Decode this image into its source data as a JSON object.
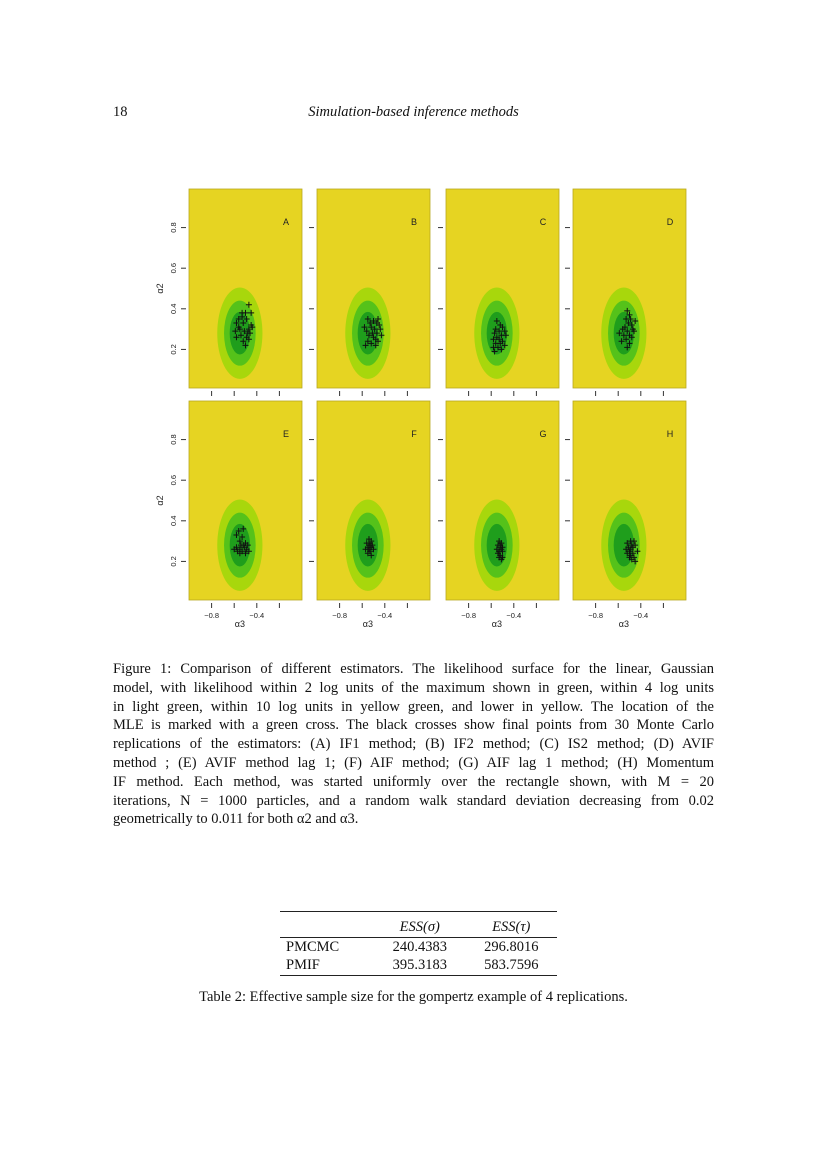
{
  "header": {
    "page_number": "18",
    "running_title": "Simulation-based inference methods"
  },
  "chart_data": {
    "type": "scatter",
    "xlabel": "α3",
    "ylabel": "α2",
    "xlim": [
      -1.0,
      0.0
    ],
    "ylim": [
      0.01,
      0.99
    ],
    "xticks": [
      -0.8,
      -0.6,
      -0.4,
      -0.2
    ],
    "xtick_labels": [
      "−0.8",
      "",
      "−0.4",
      ""
    ],
    "yticks": [
      0.2,
      0.4,
      0.6,
      0.8
    ],
    "ytick_labels": [
      "0.2",
      "0.4",
      "0.6",
      "0.8"
    ],
    "contours": {
      "center": [
        -0.55,
        0.28
      ],
      "levels": [
        {
          "color": "#a8d70c",
          "rx": 0.2,
          "ry": 0.225
        },
        {
          "color": "#55c21a",
          "rx": 0.14,
          "ry": 0.16
        },
        {
          "color": "#1f9e1c",
          "rx": 0.09,
          "ry": 0.105
        }
      ],
      "background_color": "#e6d422"
    },
    "panels": [
      {
        "label": "A",
        "points": [
          [
            -0.47,
            0.42
          ],
          [
            -0.5,
            0.38
          ],
          [
            -0.45,
            0.38
          ],
          [
            -0.53,
            0.38
          ],
          [
            -0.56,
            0.35
          ],
          [
            -0.49,
            0.35
          ],
          [
            -0.58,
            0.33
          ],
          [
            -0.52,
            0.33
          ],
          [
            -0.45,
            0.32
          ],
          [
            -0.47,
            0.3
          ],
          [
            -0.56,
            0.31
          ],
          [
            -0.59,
            0.29
          ],
          [
            -0.51,
            0.29
          ],
          [
            -0.46,
            0.28
          ],
          [
            -0.54,
            0.27
          ],
          [
            -0.49,
            0.26
          ],
          [
            -0.58,
            0.26
          ],
          [
            -0.47,
            0.25
          ],
          [
            -0.52,
            0.24
          ],
          [
            -0.5,
            0.22
          ],
          [
            -0.44,
            0.31
          ],
          [
            -0.55,
            0.3
          ],
          [
            -0.48,
            0.28
          ],
          [
            -0.53,
            0.36
          ]
        ]
      },
      {
        "label": "B",
        "points": [
          [
            -0.55,
            0.35
          ],
          [
            -0.5,
            0.34
          ],
          [
            -0.47,
            0.33
          ],
          [
            -0.45,
            0.32
          ],
          [
            -0.58,
            0.31
          ],
          [
            -0.52,
            0.31
          ],
          [
            -0.49,
            0.3
          ],
          [
            -0.44,
            0.3
          ],
          [
            -0.56,
            0.29
          ],
          [
            -0.51,
            0.28
          ],
          [
            -0.47,
            0.28
          ],
          [
            -0.54,
            0.27
          ],
          [
            -0.43,
            0.27
          ],
          [
            -0.5,
            0.26
          ],
          [
            -0.48,
            0.25
          ],
          [
            -0.55,
            0.24
          ],
          [
            -0.46,
            0.24
          ],
          [
            -0.52,
            0.23
          ],
          [
            -0.57,
            0.22
          ],
          [
            -0.48,
            0.22
          ],
          [
            -0.53,
            0.33
          ],
          [
            -0.46,
            0.35
          ]
        ]
      },
      {
        "label": "C",
        "points": [
          [
            -0.55,
            0.34
          ],
          [
            -0.52,
            0.32
          ],
          [
            -0.5,
            0.31
          ],
          [
            -0.56,
            0.3
          ],
          [
            -0.48,
            0.29
          ],
          [
            -0.53,
            0.29
          ],
          [
            -0.57,
            0.28
          ],
          [
            -0.51,
            0.27
          ],
          [
            -0.47,
            0.27
          ],
          [
            -0.55,
            0.26
          ],
          [
            -0.58,
            0.25
          ],
          [
            -0.53,
            0.25
          ],
          [
            -0.5,
            0.24
          ],
          [
            -0.56,
            0.23
          ],
          [
            -0.52,
            0.23
          ],
          [
            -0.48,
            0.22
          ],
          [
            -0.58,
            0.21
          ],
          [
            -0.54,
            0.21
          ],
          [
            -0.51,
            0.2
          ],
          [
            -0.57,
            0.19
          ]
        ]
      },
      {
        "label": "D",
        "points": [
          [
            -0.52,
            0.39
          ],
          [
            -0.5,
            0.37
          ],
          [
            -0.49,
            0.35
          ],
          [
            -0.53,
            0.35
          ],
          [
            -0.45,
            0.34
          ],
          [
            -0.51,
            0.33
          ],
          [
            -0.48,
            0.32
          ],
          [
            -0.54,
            0.31
          ],
          [
            -0.47,
            0.3
          ],
          [
            -0.56,
            0.3
          ],
          [
            -0.52,
            0.29
          ],
          [
            -0.46,
            0.29
          ],
          [
            -0.59,
            0.28
          ],
          [
            -0.5,
            0.27
          ],
          [
            -0.55,
            0.27
          ],
          [
            -0.48,
            0.26
          ],
          [
            -0.53,
            0.25
          ],
          [
            -0.57,
            0.24
          ],
          [
            -0.5,
            0.23
          ],
          [
            -0.52,
            0.21
          ]
        ]
      },
      {
        "label": "E",
        "points": [
          [
            -0.56,
            0.35
          ],
          [
            -0.52,
            0.36
          ],
          [
            -0.58,
            0.33
          ],
          [
            -0.53,
            0.32
          ],
          [
            -0.55,
            0.3
          ],
          [
            -0.5,
            0.29
          ],
          [
            -0.54,
            0.28
          ],
          [
            -0.48,
            0.28
          ],
          [
            -0.58,
            0.27
          ],
          [
            -0.51,
            0.27
          ],
          [
            -0.6,
            0.26
          ],
          [
            -0.55,
            0.26
          ],
          [
            -0.49,
            0.26
          ],
          [
            -0.53,
            0.25
          ],
          [
            -0.57,
            0.25
          ],
          [
            -0.5,
            0.24
          ],
          [
            -0.47,
            0.25
          ],
          [
            -0.55,
            0.24
          ],
          [
            -0.52,
            0.28
          ]
        ]
      },
      {
        "label": "F",
        "points": [
          [
            -0.54,
            0.31
          ],
          [
            -0.52,
            0.3
          ],
          [
            -0.56,
            0.29
          ],
          [
            -0.53,
            0.28
          ],
          [
            -0.51,
            0.28
          ],
          [
            -0.55,
            0.27
          ],
          [
            -0.52,
            0.27
          ],
          [
            -0.57,
            0.26
          ],
          [
            -0.54,
            0.26
          ],
          [
            -0.5,
            0.26
          ],
          [
            -0.53,
            0.25
          ],
          [
            -0.55,
            0.24
          ],
          [
            -0.52,
            0.23
          ],
          [
            -0.54,
            0.29
          ]
        ]
      },
      {
        "label": "G",
        "points": [
          [
            -0.53,
            0.3
          ],
          [
            -0.51,
            0.29
          ],
          [
            -0.54,
            0.28
          ],
          [
            -0.5,
            0.27
          ],
          [
            -0.52,
            0.27
          ],
          [
            -0.55,
            0.26
          ],
          [
            -0.51,
            0.26
          ],
          [
            -0.53,
            0.25
          ],
          [
            -0.5,
            0.25
          ],
          [
            -0.54,
            0.24
          ],
          [
            -0.52,
            0.23
          ],
          [
            -0.5,
            0.22
          ],
          [
            -0.53,
            0.22
          ],
          [
            -0.51,
            0.21
          ],
          [
            -0.52,
            0.28
          ]
        ]
      },
      {
        "label": "H",
        "points": [
          [
            -0.49,
            0.3
          ],
          [
            -0.46,
            0.3
          ],
          [
            -0.52,
            0.29
          ],
          [
            -0.48,
            0.28
          ],
          [
            -0.45,
            0.28
          ],
          [
            -0.51,
            0.27
          ],
          [
            -0.47,
            0.27
          ],
          [
            -0.53,
            0.26
          ],
          [
            -0.49,
            0.26
          ],
          [
            -0.43,
            0.25
          ],
          [
            -0.5,
            0.25
          ],
          [
            -0.47,
            0.24
          ],
          [
            -0.52,
            0.24
          ],
          [
            -0.49,
            0.23
          ],
          [
            -0.46,
            0.22
          ],
          [
            -0.48,
            0.21
          ],
          [
            -0.45,
            0.2
          ],
          [
            -0.5,
            0.22
          ]
        ]
      }
    ]
  },
  "figure_caption": {
    "lines": [
      "Figure 1: Comparison of different estimators. The likelihood surface for the linear, Gaussian",
      "model, with likelihood within 2 log units of the maximum shown in green, within 4 log units",
      "in light green, within 10 log units in yellow green, and lower in yellow. The location of the",
      "MLE is marked with a green cross. The black crosses show final points from 30 Monte Carlo",
      "replications of the estimators: (A) IF1 method; (B) IF2 method; (C) IS2 method; (D) AVIF",
      "method ; (E) AVIF method lag 1; (F) AIF method; (G) AIF lag 1 method; (H) Momentum",
      "IF method. Each method, was started uniformly over the rectangle shown, with M = 20",
      "iterations, N = 1000 particles, and a random walk standard deviation decreasing from 0.02",
      "geometrically to 0.011 for both α2 and α3."
    ]
  },
  "table": {
    "headers": [
      "",
      "ESS(σ)",
      "ESS(τ)"
    ],
    "rows": [
      [
        "PMCMC",
        "240.4383",
        "296.8016"
      ],
      [
        "PMIF",
        "395.3183",
        "583.7596"
      ]
    ],
    "caption": "Table 2: Effective sample size for the gompertz example of 4 replications."
  }
}
